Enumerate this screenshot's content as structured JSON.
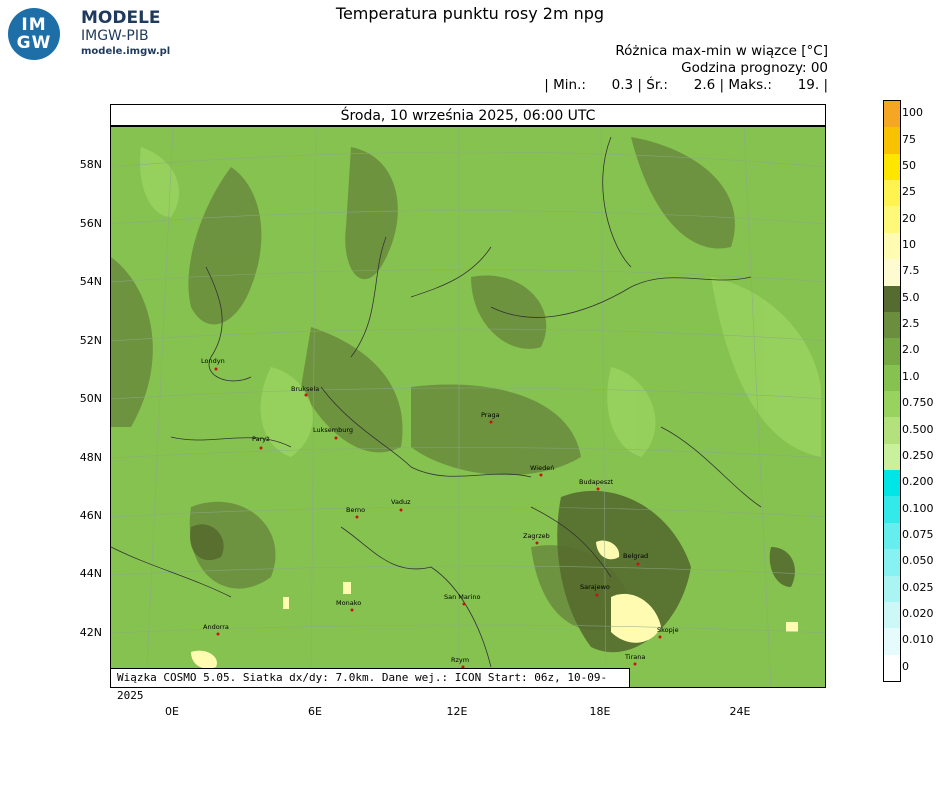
{
  "logo": {
    "mark_top": "IM",
    "mark_bottom": "GW",
    "name": "MODELE",
    "org": "IMGW-PIB",
    "site": "modele.imgw.pl"
  },
  "title": "Temperatura punktu rosy 2m npg",
  "info": {
    "line1": "Różnica max-min w wiązce [°C]",
    "line2": "Godzina prognozy: 00",
    "line3": "| Min.:      0.3 | Śr.:      2.6 | Maks.:      19. |"
  },
  "date_label": "Środa, 10 września 2025, 06:00 UTC",
  "footer": "Wiązka COSMO 5.05. Siatka dx/dy: 7.0km. Dane wej.: ICON Start: 06z, 10-09-2025",
  "lat_labels": [
    "58N",
    "56N",
    "54N",
    "52N",
    "50N",
    "48N",
    "46N",
    "44N",
    "42N"
  ],
  "lon_labels": [
    "0E",
    "6E",
    "12E",
    "18E",
    "24E"
  ],
  "cities": [
    "Londyn",
    "Bruksela",
    "Luksemburg",
    "Paryż",
    "Praga",
    "Wiedeń",
    "Budapeszt",
    "Berno",
    "Vaduz",
    "Zagrzeb",
    "Belgrad",
    "Sarajewo",
    "Monako",
    "San Marino",
    "Andorra",
    "Rzym",
    "Skopje",
    "Tirana"
  ],
  "legend": {
    "labels": [
      "100",
      "75",
      "50",
      "25",
      "20",
      "10",
      "7.5",
      "5.0",
      "2.5",
      "2.0",
      "1.0",
      "0.750",
      "0.500",
      "0.250",
      "0.200",
      "0.100",
      "0.075",
      "0.050",
      "0.025",
      "0.020",
      "0.010",
      "0"
    ],
    "colors": [
      "#f5a623",
      "#f9c200",
      "#ffe600",
      "#fff44f",
      "#fff97a",
      "#fffbb0",
      "#fffbd0",
      "#556b2f",
      "#6b8e3e",
      "#76a844",
      "#86c250",
      "#99d35f",
      "#b3e27d",
      "#c9f09a",
      "#00e5e5",
      "#33eaea",
      "#66eeee",
      "#88f1f1",
      "#aaf4f4",
      "#ccf8f8",
      "#e6fbfb",
      "#ffffff"
    ]
  }
}
